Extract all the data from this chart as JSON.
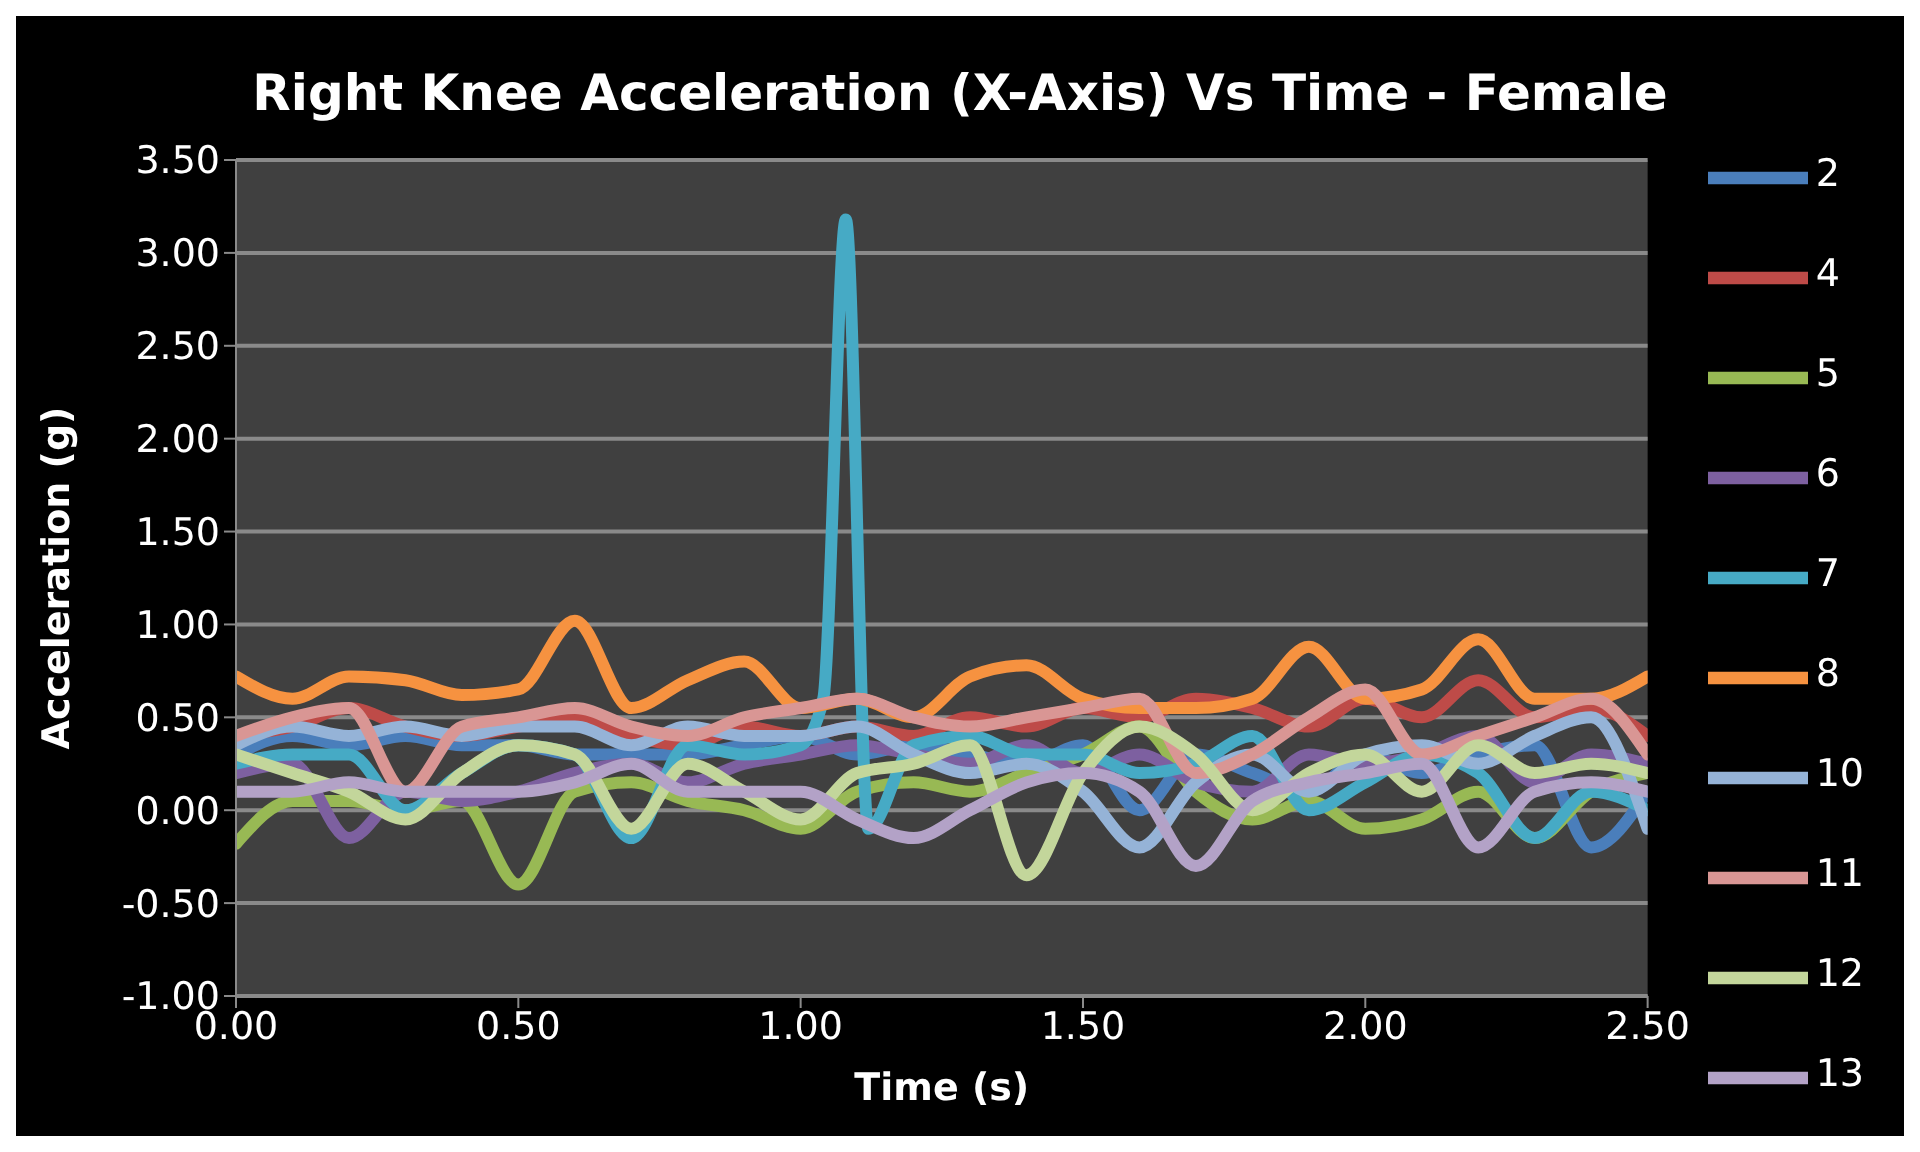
{
  "chart_data": {
    "type": "line",
    "title": "Right Knee Acceleration (X-Axis) Vs Time - Female",
    "xlabel": "Time (s)",
    "ylabel": "Acceleration (g)",
    "x": [
      0,
      0.1,
      0.2,
      0.3,
      0.4,
      0.5,
      0.6,
      0.7,
      0.8,
      0.9,
      1.0,
      1.1,
      1.2,
      1.3,
      1.4,
      1.5,
      1.6,
      1.7,
      1.8,
      1.9,
      2.0,
      2.1,
      2.2,
      2.3,
      2.4,
      2.5
    ],
    "series": [
      {
        "name": "2",
        "color": "#4a7ebb",
        "values": [
          0.3,
          0.4,
          0.35,
          0.4,
          0.35,
          0.35,
          0.3,
          0.3,
          0.3,
          0.35,
          0.4,
          0.3,
          0.35,
          0.3,
          0.25,
          0.35,
          0.0,
          0.3,
          0.2,
          0.1,
          0.3,
          0.2,
          0.3,
          0.35,
          -0.2,
          0.1
        ]
      },
      {
        "name": "4",
        "color": "#be4b48",
        "values": [
          0.4,
          0.45,
          0.55,
          0.45,
          0.4,
          0.45,
          0.5,
          0.4,
          0.35,
          0.45,
          0.4,
          0.45,
          0.4,
          0.5,
          0.45,
          0.55,
          0.5,
          0.6,
          0.55,
          0.45,
          0.6,
          0.5,
          0.7,
          0.5,
          0.55,
          0.4
        ]
      },
      {
        "name": "5",
        "color": "#98b954",
        "values": [
          -0.18,
          0.05,
          0.05,
          0.0,
          0.05,
          -0.4,
          0.1,
          0.15,
          0.05,
          0.0,
          -0.1,
          0.1,
          0.15,
          0.1,
          0.2,
          0.3,
          0.45,
          0.1,
          -0.05,
          0.05,
          -0.1,
          -0.05,
          0.1,
          -0.15,
          0.1,
          0.2
        ]
      },
      {
        "name": "6",
        "color": "#7d60a0",
        "values": [
          0.2,
          0.25,
          -0.15,
          0.1,
          0.05,
          0.1,
          0.2,
          0.25,
          0.15,
          0.25,
          0.3,
          0.35,
          0.3,
          0.25,
          0.35,
          0.2,
          0.3,
          0.15,
          0.1,
          0.3,
          0.25,
          0.3,
          0.4,
          0.15,
          0.3,
          0.25
        ]
      },
      {
        "name": "7",
        "color": "#46aac5",
        "x": [
          0,
          0.1,
          0.2,
          0.3,
          0.4,
          0.5,
          0.6,
          0.7,
          0.8,
          0.9,
          1.0,
          1.04,
          1.08,
          1.12,
          1.2,
          1.3,
          1.4,
          1.5,
          1.6,
          1.7,
          1.8,
          1.9,
          2.0,
          2.1,
          2.2,
          2.3,
          2.4,
          2.5
        ],
        "values": [
          0.25,
          0.3,
          0.3,
          0.0,
          0.2,
          0.35,
          0.3,
          -0.15,
          0.35,
          0.3,
          0.35,
          0.6,
          3.18,
          -0.1,
          0.35,
          0.4,
          0.3,
          0.3,
          0.2,
          0.25,
          0.4,
          0.0,
          0.15,
          0.3,
          0.2,
          -0.15,
          0.1,
          0.0
        ]
      },
      {
        "name": "8",
        "color": "#f69240",
        "values": [
          0.72,
          0.6,
          0.72,
          0.7,
          0.62,
          0.65,
          1.02,
          0.55,
          0.7,
          0.8,
          0.55,
          0.6,
          0.5,
          0.72,
          0.78,
          0.6,
          0.55,
          0.55,
          0.6,
          0.88,
          0.6,
          0.65,
          0.92,
          0.6,
          0.6,
          0.72
        ]
      },
      {
        "name": "10",
        "color": "#95b3d7",
        "values": [
          0.35,
          0.45,
          0.4,
          0.45,
          0.4,
          0.45,
          0.45,
          0.35,
          0.45,
          0.4,
          0.4,
          0.45,
          0.3,
          0.2,
          0.25,
          0.1,
          -0.2,
          0.15,
          0.3,
          0.1,
          0.3,
          0.35,
          0.25,
          0.4,
          0.5,
          -0.1
        ]
      },
      {
        "name": "11",
        "color": "#d99694",
        "values": [
          0.4,
          0.5,
          0.55,
          0.1,
          0.45,
          0.5,
          0.55,
          0.45,
          0.4,
          0.5,
          0.55,
          0.6,
          0.5,
          0.45,
          0.5,
          0.55,
          0.6,
          0.2,
          0.3,
          0.5,
          0.65,
          0.3,
          0.4,
          0.5,
          0.6,
          0.3
        ]
      },
      {
        "name": "12",
        "color": "#c3d69b",
        "values": [
          0.3,
          0.2,
          0.1,
          -0.05,
          0.2,
          0.35,
          0.3,
          -0.1,
          0.25,
          0.1,
          -0.05,
          0.2,
          0.25,
          0.35,
          -0.35,
          0.2,
          0.45,
          0.3,
          0.0,
          0.2,
          0.3,
          0.1,
          0.35,
          0.2,
          0.25,
          0.2
        ]
      },
      {
        "name": "13",
        "color": "#b3a2c7",
        "values": [
          0.1,
          0.1,
          0.15,
          0.1,
          0.1,
          0.1,
          0.15,
          0.25,
          0.1,
          0.1,
          0.1,
          -0.05,
          -0.15,
          0.0,
          0.15,
          0.2,
          0.1,
          -0.3,
          0.05,
          0.15,
          0.2,
          0.25,
          -0.2,
          0.1,
          0.15,
          0.1
        ]
      }
    ],
    "xlim": [
      0,
      2.5
    ],
    "xticks": [
      {
        "value": 0,
        "label": "0.00"
      },
      {
        "value": 0.5,
        "label": "0.50"
      },
      {
        "value": 1,
        "label": "1.00"
      },
      {
        "value": 1.5,
        "label": "1.50"
      },
      {
        "value": 2,
        "label": "2.00"
      },
      {
        "value": 2.5,
        "label": "2.50"
      }
    ],
    "ylim": [
      -1,
      3.5
    ],
    "yticks": [
      {
        "value": -1,
        "label": "-1.00"
      },
      {
        "value": -0.5,
        "label": "-0.50"
      },
      {
        "value": 0,
        "label": "0.00"
      },
      {
        "value": 0.5,
        "label": "0.50"
      },
      {
        "value": 1,
        "label": "1.00"
      },
      {
        "value": 1.5,
        "label": "1.50"
      },
      {
        "value": 2,
        "label": "2.00"
      },
      {
        "value": 2.5,
        "label": "2.50"
      },
      {
        "value": 3,
        "label": "3.00"
      },
      {
        "value": 3.5,
        "label": "3.50"
      }
    ],
    "grid": "y",
    "legend": "right",
    "marker": "none",
    "line_style": "solid"
  }
}
